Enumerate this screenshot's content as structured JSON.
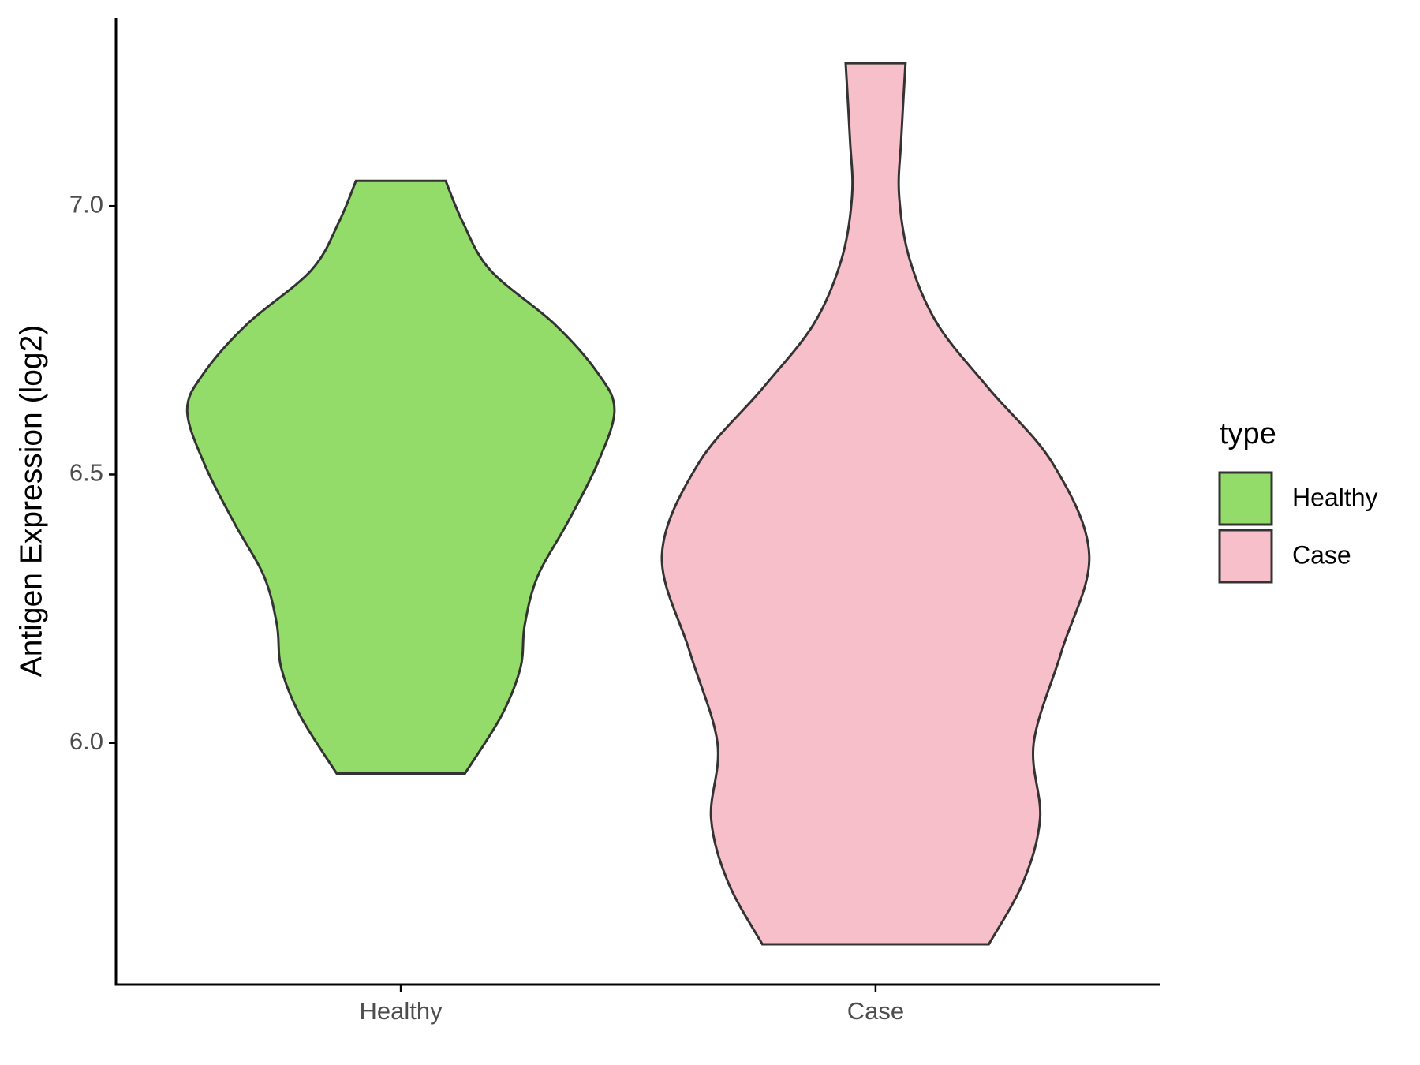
{
  "chart_data": {
    "type": "violin",
    "y_label": "Antigen Expression (log2)",
    "categories": [
      "Healthy",
      "Case"
    ],
    "ylim": [
      5.55,
      7.35
    ],
    "yticks": [
      {
        "value": 6,
        "label": "6.0"
      },
      {
        "value": 6.5,
        "label": "6.5"
      },
      {
        "value": 7,
        "label": "7.0"
      }
    ],
    "legend_title": "type",
    "legend_position": "right",
    "grid": false,
    "series": [
      {
        "name": "Healthy",
        "color": "#93dc6a",
        "y": [
          7.047,
          6.97,
          6.88,
          6.78,
          6.69,
          6.62,
          6.52,
          6.41,
          6.31,
          6.22,
          6.14,
          6.05,
          5.943
        ],
        "width": [
          0.21,
          0.29,
          0.42,
          0.72,
          0.92,
          1.0,
          0.92,
          0.78,
          0.64,
          0.58,
          0.56,
          0.47,
          0.3
        ]
      },
      {
        "name": "Case",
        "color": "#f7bfca",
        "y": [
          7.266,
          7.125,
          7.02,
          6.9,
          6.78,
          6.66,
          6.52,
          6.35,
          6.17,
          6.0,
          5.86,
          5.74,
          5.625
        ],
        "width": [
          0.14,
          0.12,
          0.11,
          0.16,
          0.29,
          0.53,
          0.83,
          1.0,
          0.87,
          0.74,
          0.77,
          0.69,
          0.53
        ]
      }
    ]
  }
}
